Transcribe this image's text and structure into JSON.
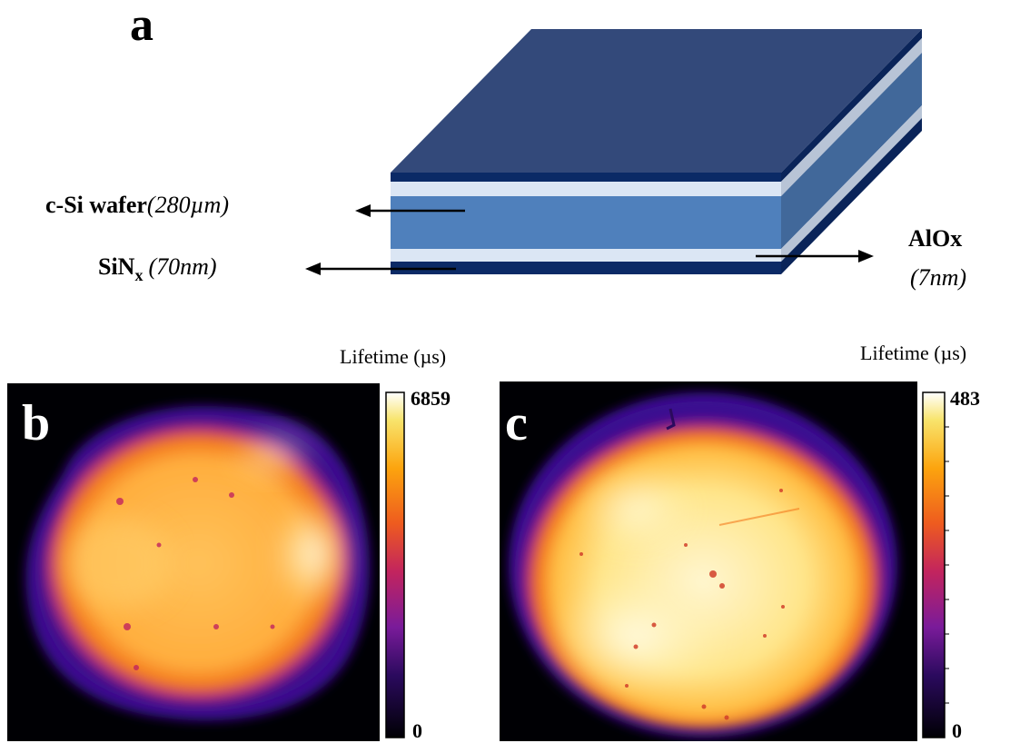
{
  "panel_a": {
    "label": "a",
    "layers": {
      "wafer_name": "c-Si wafer",
      "wafer_thickness": "(280µm)",
      "sinx_name_base": "SiN",
      "sinx_name_sub": "x",
      "sinx_thickness": "(70nm)",
      "alox_name": "AlOx",
      "alox_thickness": "(7nm)"
    },
    "colors": {
      "sinx_top": "#33497a",
      "sinx_front": "#0b2a66",
      "alox_front": "#dbe6f4",
      "wafer_front": "#4f80bc",
      "side_dark": "#0a2459",
      "side_wafer": "#41689a",
      "side_light": "#b8c4d6"
    }
  },
  "panel_b": {
    "label": "b",
    "colorbar_title": "Lifetime (µs)",
    "colorbar_max": "6859",
    "colorbar_min": "0"
  },
  "panel_c": {
    "label": "c",
    "colorbar_title": "Lifetime (µs)",
    "colorbar_max": "483",
    "colorbar_min": "0"
  }
}
